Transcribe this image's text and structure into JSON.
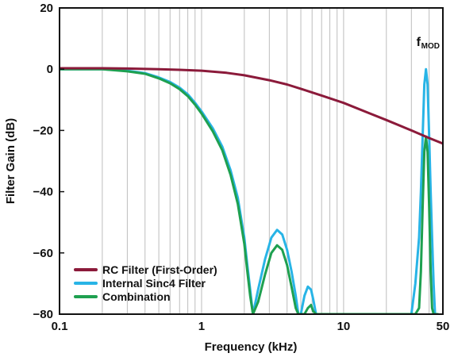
{
  "chart_data": {
    "type": "line",
    "xlabel": "Frequency (kHz)",
    "ylabel": "Filter Gain (dB)",
    "x_scale": "log",
    "xlim": [
      0.1,
      50
    ],
    "ylim": [
      -80,
      20
    ],
    "x_ticks": [
      {
        "value": 0.1,
        "label": "0.1"
      },
      {
        "value": 1,
        "label": "1"
      },
      {
        "value": 10,
        "label": "10"
      },
      {
        "value": 50,
        "label": "50"
      }
    ],
    "y_ticks": [
      {
        "value": 20,
        "label": "20"
      },
      {
        "value": 0,
        "label": "0"
      },
      {
        "value": -20,
        "label": "−20"
      },
      {
        "value": -40,
        "label": "−40"
      },
      {
        "value": -60,
        "label": "−60"
      },
      {
        "value": -80,
        "label": "−80"
      }
    ],
    "grid": {
      "vertical": true,
      "horizontal": false
    },
    "legend_position": "bottom-left",
    "annotation": {
      "text": "f",
      "subscript": "MOD",
      "x": 40,
      "y": 4
    },
    "series": [
      {
        "name": "RC Filter (First-Order)",
        "color": "#8b1a3a",
        "x": [
          0.1,
          0.2,
          0.3,
          0.5,
          0.7,
          1,
          1.5,
          2,
          3,
          4,
          5,
          7,
          10,
          15,
          20,
          30,
          40,
          50
        ],
        "y": [
          0.3,
          0.3,
          0.2,
          0,
          -0.2,
          -0.5,
          -1.2,
          -2,
          -3.6,
          -5,
          -6.4,
          -8.6,
          -11,
          -14.3,
          -16.6,
          -20,
          -22.5,
          -24.3
        ]
      },
      {
        "name": "Internal Sinc4 Filter",
        "color": "#28b4e6",
        "x": [
          0.1,
          0.2,
          0.3,
          0.4,
          0.5,
          0.6,
          0.7,
          0.8,
          0.9,
          1,
          1.2,
          1.4,
          1.6,
          1.8,
          2,
          2.1,
          2.2,
          2.3,
          2.5,
          2.8,
          3.1,
          3.4,
          3.7,
          4,
          4.3,
          4.6,
          4.8,
          5,
          5.3,
          5.6,
          5.9,
          6.1,
          6.4,
          6.6,
          6.8,
          30,
          32,
          34,
          35,
          36,
          37,
          38,
          39,
          40,
          41,
          42,
          43,
          44,
          46
        ],
        "y": [
          0,
          0,
          -0.5,
          -1.3,
          -2.7,
          -4.2,
          -6,
          -8.2,
          -11,
          -13.8,
          -19.3,
          -25.3,
          -33,
          -42,
          -55,
          -64,
          -72,
          -80,
          -72,
          -62,
          -55,
          -52.5,
          -54,
          -59,
          -66,
          -74,
          -80,
          -80,
          -74,
          -71,
          -72,
          -75,
          -80,
          -80,
          -80,
          -80,
          -70,
          -55,
          -40,
          -22,
          -5,
          0,
          -5,
          -22,
          -40,
          -55,
          -70,
          -80,
          -80
        ]
      },
      {
        "name": "Combination",
        "color": "#1ea050",
        "x": [
          0.1,
          0.2,
          0.3,
          0.4,
          0.5,
          0.6,
          0.7,
          0.8,
          0.9,
          1,
          1.2,
          1.4,
          1.6,
          1.8,
          2,
          2.1,
          2.2,
          2.3,
          2.5,
          2.8,
          3.1,
          3.4,
          3.7,
          4,
          4.3,
          4.6,
          4.8,
          5,
          5.3,
          5.6,
          5.9,
          6.1,
          6.4,
          6.6,
          6.8,
          30,
          32,
          34,
          35,
          36,
          37,
          38,
          39,
          40,
          41,
          42,
          43,
          44,
          46
        ],
        "y": [
          0,
          0,
          -0.7,
          -1.5,
          -3,
          -4.6,
          -6.5,
          -8.8,
          -11.6,
          -14.5,
          -20.3,
          -26.5,
          -34.5,
          -44,
          -57,
          -66,
          -74,
          -80,
          -76,
          -67,
          -60,
          -57.5,
          -59,
          -64,
          -71,
          -78,
          -80,
          -80,
          -80,
          -78,
          -77,
          -79,
          -80,
          -80,
          -80,
          -80,
          -80,
          -78,
          -66,
          -45,
          -27,
          -22,
          -27,
          -45,
          -66,
          -78,
          -80,
          -80,
          -80
        ]
      }
    ]
  }
}
